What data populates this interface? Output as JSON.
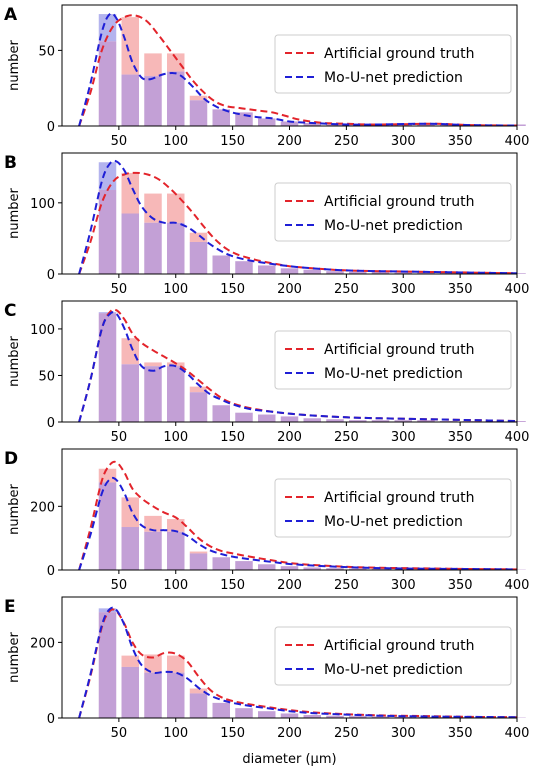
{
  "figure": {
    "xlabel": "diameter (µm)"
  },
  "legend": {
    "truth_label": "Artificial ground truth",
    "pred_label": "Mo-U-net prediction"
  },
  "colors": {
    "truth_line": "#e3242b",
    "pred_line": "#1f1fd6",
    "truth_bar": "#f7b8b8",
    "pred_bar": "#b3b3ee",
    "overlap_bar": "#c3a0d6",
    "axis": "#000000",
    "legend_border": "#cccccc"
  },
  "chart_data": [
    {
      "panel": "A",
      "type": "bar",
      "ylabel": "number",
      "xlim": [
        0,
        400
      ],
      "ylim": [
        0,
        80
      ],
      "xticks": [
        50,
        100,
        150,
        200,
        250,
        300,
        350,
        400
      ],
      "yticks": [
        0,
        50
      ],
      "bin_centers": [
        40,
        60,
        80,
        100,
        120,
        140,
        160,
        180,
        200,
        220,
        240,
        260,
        280,
        300,
        320,
        340,
        360,
        380,
        400
      ],
      "series": [
        {
          "name": "Artificial ground truth",
          "bars": [
            56,
            72,
            48,
            48,
            20,
            11,
            9,
            5,
            3,
            2,
            1,
            1,
            1,
            1,
            2,
            1,
            1,
            1,
            1
          ],
          "kde_x": [
            15,
            25,
            35,
            45,
            55,
            65,
            75,
            85,
            95,
            105,
            115,
            125,
            135,
            145,
            155,
            165,
            175,
            185,
            195,
            210,
            230,
            250,
            270,
            300,
            330,
            360,
            400
          ],
          "kde_y": [
            0,
            22,
            50,
            66,
            72,
            73,
            69,
            60,
            50,
            40,
            30,
            22,
            16,
            13,
            12,
            11,
            10,
            9,
            7,
            4,
            2,
            1.5,
            1,
            1.2,
            1.5,
            0.6,
            0.3
          ]
        },
        {
          "name": "Mo-U-net prediction",
          "bars": [
            74,
            34,
            33,
            36,
            17,
            11,
            9,
            5,
            3,
            2,
            1,
            1,
            1,
            1,
            2,
            1,
            1,
            1,
            1
          ],
          "kde_x": [
            15,
            25,
            35,
            42,
            48,
            55,
            62,
            70,
            78,
            88,
            98,
            105,
            115,
            125,
            135,
            145,
            155,
            170,
            185,
            200,
            220,
            250,
            280,
            320,
            360,
            400
          ],
          "kde_y": [
            0,
            28,
            62,
            74,
            71,
            58,
            42,
            32,
            31,
            34,
            35,
            33,
            26,
            18,
            13,
            10,
            8,
            6,
            5,
            3,
            2,
            1,
            1,
            1.5,
            0.6,
            0.3
          ]
        }
      ]
    },
    {
      "panel": "B",
      "type": "bar",
      "ylabel": "number",
      "xlim": [
        0,
        400
      ],
      "ylim": [
        0,
        170
      ],
      "xticks": [
        50,
        100,
        150,
        200,
        250,
        300,
        350,
        400
      ],
      "yticks": [
        0,
        100
      ],
      "bin_centers": [
        40,
        60,
        80,
        100,
        120,
        140,
        160,
        180,
        200,
        220,
        240,
        260,
        280,
        300,
        320,
        340,
        360,
        380,
        400
      ],
      "series": [
        {
          "name": "Artificial ground truth",
          "bars": [
            118,
            142,
            113,
            113,
            58,
            26,
            18,
            12,
            8,
            6,
            4,
            3,
            3,
            2,
            2,
            2,
            1,
            1,
            1
          ],
          "kde_x": [
            15,
            25,
            35,
            45,
            55,
            65,
            75,
            85,
            95,
            105,
            115,
            125,
            135,
            145,
            155,
            170,
            185,
            200,
            220,
            250,
            280,
            320,
            360,
            400
          ],
          "kde_y": [
            0,
            45,
            100,
            130,
            140,
            142,
            140,
            133,
            120,
            104,
            86,
            66,
            48,
            35,
            27,
            20,
            15,
            11,
            8,
            5,
            4,
            3,
            2,
            1
          ]
        },
        {
          "name": "Mo-U-net prediction",
          "bars": [
            157,
            85,
            72,
            72,
            45,
            26,
            18,
            12,
            8,
            6,
            4,
            3,
            3,
            2,
            2,
            2,
            1,
            1,
            1
          ],
          "kde_x": [
            15,
            25,
            35,
            42,
            48,
            55,
            62,
            70,
            80,
            90,
            100,
            110,
            120,
            130,
            140,
            150,
            165,
            185,
            200,
            220,
            250,
            280,
            320,
            360,
            400
          ],
          "kde_y": [
            0,
            60,
            130,
            155,
            158,
            145,
            120,
            95,
            78,
            72,
            72,
            66,
            55,
            42,
            32,
            25,
            19,
            14,
            11,
            8,
            5,
            4,
            3,
            2,
            1
          ]
        }
      ]
    },
    {
      "panel": "C",
      "type": "bar",
      "ylabel": "number",
      "xlim": [
        0,
        400
      ],
      "ylim": [
        0,
        130
      ],
      "xticks": [
        50,
        100,
        150,
        200,
        250,
        300,
        350,
        400
      ],
      "yticks": [
        0,
        50,
        100
      ],
      "bin_centers": [
        40,
        60,
        80,
        100,
        120,
        140,
        160,
        180,
        200,
        220,
        240,
        260,
        280,
        300,
        320,
        340,
        360,
        380,
        400
      ],
      "series": [
        {
          "name": "Artificial ground truth",
          "bars": [
            117,
            90,
            64,
            64,
            38,
            18,
            10,
            8,
            6,
            4,
            3,
            2,
            2,
            2,
            2,
            1,
            1,
            1,
            1
          ],
          "kde_x": [
            15,
            25,
            35,
            42,
            48,
            55,
            62,
            70,
            80,
            90,
            100,
            110,
            120,
            130,
            140,
            150,
            165,
            185,
            200,
            220,
            250,
            280,
            320,
            360,
            400
          ],
          "kde_y": [
            0,
            45,
            100,
            118,
            120,
            110,
            95,
            85,
            77,
            70,
            63,
            55,
            45,
            35,
            26,
            20,
            15,
            11,
            9,
            7,
            5,
            4,
            3,
            2,
            1
          ]
        },
        {
          "name": "Mo-U-net prediction",
          "bars": [
            118,
            62,
            60,
            60,
            32,
            18,
            10,
            8,
            6,
            4,
            3,
            2,
            2,
            2,
            2,
            1,
            1,
            1,
            1
          ],
          "kde_x": [
            15,
            25,
            35,
            42,
            48,
            55,
            62,
            70,
            80,
            90,
            100,
            110,
            120,
            130,
            140,
            150,
            165,
            185,
            200,
            220,
            250,
            280,
            320,
            360,
            400
          ],
          "kde_y": [
            0,
            45,
            100,
            116,
            116,
            100,
            78,
            60,
            55,
            60,
            60,
            52,
            40,
            30,
            24,
            19,
            14,
            11,
            9,
            7,
            5,
            4,
            3,
            2,
            1
          ]
        }
      ]
    },
    {
      "panel": "D",
      "type": "bar",
      "ylabel": "number",
      "xlim": [
        0,
        400
      ],
      "ylim": [
        0,
        380
      ],
      "xticks": [
        50,
        100,
        150,
        200,
        250,
        300,
        350,
        400
      ],
      "yticks": [
        0,
        200
      ],
      "bin_centers": [
        40,
        60,
        80,
        100,
        120,
        140,
        160,
        180,
        200,
        220,
        240,
        260,
        280,
        300,
        320,
        340,
        360,
        380,
        400
      ],
      "series": [
        {
          "name": "Artificial ground truth",
          "bars": [
            318,
            228,
            170,
            160,
            58,
            40,
            28,
            18,
            12,
            8,
            6,
            5,
            4,
            3,
            3,
            2,
            2,
            1,
            1
          ],
          "kde_x": [
            15,
            25,
            35,
            42,
            48,
            55,
            62,
            70,
            80,
            90,
            100,
            110,
            120,
            130,
            140,
            150,
            165,
            185,
            200,
            220,
            250,
            280,
            320,
            360,
            400
          ],
          "kde_y": [
            0,
            130,
            280,
            330,
            338,
            305,
            255,
            225,
            200,
            180,
            165,
            135,
            100,
            75,
            60,
            52,
            42,
            30,
            22,
            16,
            10,
            7,
            5,
            3,
            2
          ]
        },
        {
          "name": "Mo-U-net prediction",
          "bars": [
            275,
            135,
            120,
            120,
            52,
            40,
            28,
            18,
            12,
            8,
            6,
            5,
            4,
            3,
            3,
            2,
            2,
            1,
            1
          ],
          "kde_x": [
            15,
            25,
            35,
            42,
            48,
            55,
            62,
            70,
            80,
            90,
            100,
            110,
            120,
            130,
            140,
            150,
            165,
            185,
            200,
            220,
            250,
            280,
            320,
            360,
            400
          ],
          "kde_y": [
            0,
            110,
            240,
            285,
            282,
            240,
            180,
            140,
            125,
            125,
            122,
            108,
            82,
            62,
            50,
            42,
            34,
            25,
            19,
            14,
            9,
            6,
            4,
            3,
            2
          ]
        }
      ]
    },
    {
      "panel": "E",
      "type": "bar",
      "ylabel": "number",
      "xlim": [
        0,
        400
      ],
      "ylim": [
        0,
        320
      ],
      "xticks": [
        50,
        100,
        150,
        200,
        250,
        300,
        350,
        400
      ],
      "yticks": [
        0,
        200
      ],
      "bin_centers": [
        40,
        60,
        80,
        100,
        120,
        140,
        160,
        180,
        200,
        220,
        240,
        260,
        280,
        300,
        320,
        340,
        360,
        380,
        400
      ],
      "series": [
        {
          "name": "Artificial ground truth",
          "bars": [
            280,
            165,
            168,
            165,
            78,
            40,
            26,
            18,
            12,
            8,
            6,
            5,
            4,
            3,
            3,
            2,
            2,
            1,
            1
          ],
          "kde_x": [
            15,
            25,
            35,
            42,
            48,
            55,
            62,
            70,
            80,
            90,
            100,
            110,
            120,
            130,
            140,
            150,
            165,
            185,
            200,
            220,
            250,
            280,
            320,
            360,
            400
          ],
          "kde_y": [
            0,
            110,
            240,
            283,
            282,
            248,
            200,
            168,
            160,
            172,
            170,
            150,
            110,
            75,
            55,
            45,
            36,
            27,
            21,
            15,
            10,
            7,
            5,
            3,
            2
          ]
        },
        {
          "name": "Mo-U-net prediction",
          "bars": [
            290,
            135,
            120,
            120,
            65,
            40,
            26,
            18,
            12,
            8,
            6,
            5,
            4,
            3,
            3,
            2,
            2,
            1,
            1
          ],
          "kde_x": [
            15,
            25,
            35,
            42,
            48,
            55,
            62,
            70,
            80,
            90,
            100,
            110,
            120,
            130,
            140,
            150,
            165,
            185,
            200,
            220,
            250,
            280,
            320,
            360,
            400
          ],
          "kde_y": [
            0,
            115,
            245,
            288,
            285,
            245,
            185,
            140,
            120,
            122,
            120,
            105,
            80,
            60,
            48,
            40,
            32,
            24,
            18,
            13,
            9,
            6,
            4,
            3,
            2
          ]
        }
      ]
    }
  ]
}
